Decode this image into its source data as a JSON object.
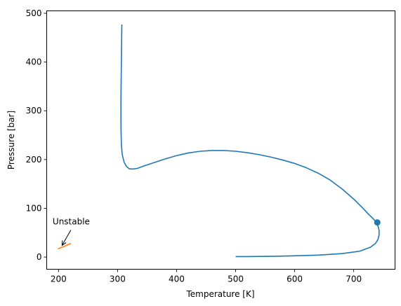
{
  "chart_data": {
    "type": "line",
    "xlabel": "Temperature [K]",
    "ylabel": "Pressure [bar]",
    "xlim": [
      180,
      770
    ],
    "ylim": [
      -25,
      505
    ],
    "xticks": [
      200,
      300,
      400,
      500,
      600,
      700
    ],
    "yticks": [
      0,
      100,
      200,
      300,
      400,
      500
    ],
    "grid": false,
    "series": [
      {
        "color": "#1f77b4",
        "points": [
          [
            307.3,
            477
          ],
          [
            307.0,
            455
          ],
          [
            306.7,
            420
          ],
          [
            306.3,
            380
          ],
          [
            305.9,
            340
          ],
          [
            305.7,
            300
          ],
          [
            305.9,
            260
          ],
          [
            306.5,
            230
          ],
          [
            308,
            210
          ],
          [
            311,
            195
          ],
          [
            315,
            186
          ],
          [
            320,
            181
          ],
          [
            326,
            180.5
          ],
          [
            334,
            182
          ],
          [
            345,
            187
          ],
          [
            360,
            193
          ],
          [
            380,
            201
          ],
          [
            400,
            208
          ],
          [
            420,
            213.5
          ],
          [
            440,
            217
          ],
          [
            460,
            218.5
          ],
          [
            480,
            218.5
          ],
          [
            500,
            217
          ],
          [
            520,
            214
          ],
          [
            540,
            210
          ],
          [
            560,
            205
          ],
          [
            580,
            199
          ],
          [
            600,
            192
          ],
          [
            620,
            183
          ],
          [
            640,
            172
          ],
          [
            660,
            158
          ],
          [
            680,
            140
          ],
          [
            700,
            119
          ],
          [
            715,
            101
          ],
          [
            725,
            88
          ],
          [
            732,
            80
          ],
          [
            737,
            73
          ],
          [
            741,
            64
          ],
          [
            743,
            55
          ],
          [
            743,
            45
          ],
          [
            741,
            36
          ],
          [
            737,
            28
          ],
          [
            728,
            20
          ],
          [
            710,
            12
          ],
          [
            680,
            7
          ],
          [
            640,
            4
          ],
          [
            600,
            2.5
          ],
          [
            560,
            1.5
          ],
          [
            520,
            1
          ],
          [
            500,
            1
          ]
        ]
      },
      {
        "color": "#ff7f0e",
        "points": [
          [
            199,
            17
          ],
          [
            210,
            22
          ],
          [
            221,
            28
          ]
        ]
      }
    ],
    "markers": [
      {
        "x": 740,
        "y": 71,
        "color": "#1f77b4"
      }
    ],
    "annotations": [
      {
        "text": "Unstable",
        "text_x": 190,
        "text_y": 67,
        "target_x": 206,
        "target_y": 24
      }
    ]
  }
}
